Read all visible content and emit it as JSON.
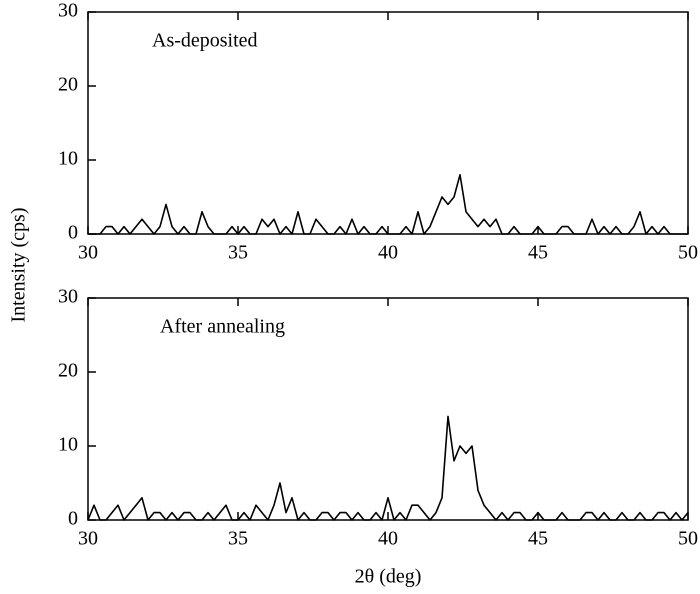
{
  "chart_data": [
    {
      "type": "line",
      "annotation": "As-deposited",
      "ylabel": "Intensity (cps)",
      "color": "#000000",
      "x": [
        30,
        30.2,
        30.4,
        30.6,
        30.8,
        31,
        31.2,
        31.4,
        31.6,
        31.8,
        32,
        32.2,
        32.4,
        32.6,
        32.8,
        33,
        33.2,
        33.4,
        33.6,
        33.8,
        34,
        34.2,
        34.4,
        34.6,
        34.8,
        35,
        35.2,
        35.4,
        35.6,
        35.8,
        36,
        36.2,
        36.4,
        36.6,
        36.8,
        37,
        37.2,
        37.4,
        37.6,
        37.8,
        38,
        38.2,
        38.4,
        38.6,
        38.8,
        39,
        39.2,
        39.4,
        39.6,
        39.8,
        40,
        40.2,
        40.4,
        40.6,
        40.8,
        41,
        41.2,
        41.4,
        41.6,
        41.8,
        42,
        42.2,
        42.4,
        42.6,
        42.8,
        43,
        43.2,
        43.4,
        43.6,
        43.8,
        44,
        44.2,
        44.4,
        44.6,
        44.8,
        45,
        45.2,
        45.4,
        45.6,
        45.8,
        46,
        46.2,
        46.4,
        46.6,
        46.8,
        47,
        47.2,
        47.4,
        47.6,
        47.8,
        48,
        48.2,
        48.4,
        48.6,
        48.8,
        49,
        49.2,
        49.4,
        49.6,
        49.8,
        50
      ],
      "values": [
        0,
        0,
        0,
        1,
        1,
        0,
        1,
        0,
        1,
        2,
        1,
        0,
        1,
        4,
        1,
        0,
        1,
        0,
        0,
        3,
        1,
        0,
        0,
        0,
        1,
        0,
        1,
        0,
        0,
        2,
        1,
        2,
        0,
        1,
        0,
        3,
        0,
        0,
        2,
        1,
        0,
        0,
        1,
        0,
        2,
        0,
        1,
        0,
        0,
        1,
        0,
        0,
        0,
        1,
        0,
        3,
        0,
        1,
        3,
        5,
        4,
        5,
        8,
        3,
        2,
        1,
        2,
        1,
        2,
        0,
        0,
        1,
        0,
        0,
        0,
        1,
        0,
        0,
        0,
        1,
        1,
        0,
        0,
        0,
        2,
        0,
        1,
        0,
        1,
        0,
        0,
        1,
        3,
        0,
        1,
        0,
        1,
        0,
        0,
        0,
        0
      ],
      "xlim": [
        30,
        50
      ],
      "xticks": [
        30,
        35,
        40,
        45,
        50
      ],
      "ylim": [
        0,
        30
      ],
      "yticks": [
        0,
        10,
        20,
        30
      ]
    },
    {
      "type": "line",
      "annotation": "After annealing",
      "xlabel": "2θ (deg)",
      "color": "#000000",
      "x": [
        30,
        30.2,
        30.4,
        30.6,
        30.8,
        31,
        31.2,
        31.4,
        31.6,
        31.8,
        32,
        32.2,
        32.4,
        32.6,
        32.8,
        33,
        33.2,
        33.4,
        33.6,
        33.8,
        34,
        34.2,
        34.4,
        34.6,
        34.8,
        35,
        35.2,
        35.4,
        35.6,
        35.8,
        36,
        36.2,
        36.4,
        36.6,
        36.8,
        37,
        37.2,
        37.4,
        37.6,
        37.8,
        38,
        38.2,
        38.4,
        38.6,
        38.8,
        39,
        39.2,
        39.4,
        39.6,
        39.8,
        40,
        40.2,
        40.4,
        40.6,
        40.8,
        41,
        41.2,
        41.4,
        41.6,
        41.8,
        42,
        42.2,
        42.4,
        42.6,
        42.8,
        43,
        43.2,
        43.4,
        43.6,
        43.8,
        44,
        44.2,
        44.4,
        44.6,
        44.8,
        45,
        45.2,
        45.4,
        45.6,
        45.8,
        46,
        46.2,
        46.4,
        46.6,
        46.8,
        47,
        47.2,
        47.4,
        47.6,
        47.8,
        48,
        48.2,
        48.4,
        48.6,
        48.8,
        49,
        49.2,
        49.4,
        49.6,
        49.8,
        50
      ],
      "values": [
        0,
        2,
        0,
        0,
        1,
        2,
        0,
        1,
        2,
        3,
        0,
        1,
        1,
        0,
        1,
        0,
        1,
        1,
        0,
        0,
        1,
        0,
        1,
        2,
        0,
        0,
        1,
        0,
        2,
        1,
        0,
        2,
        5,
        1,
        3,
        0,
        1,
        0,
        0,
        1,
        1,
        0,
        1,
        1,
        0,
        1,
        0,
        0,
        1,
        0,
        3,
        0,
        1,
        0,
        2,
        2,
        1,
        0,
        1,
        3,
        14,
        8,
        10,
        9,
        10,
        4,
        2,
        1,
        0,
        1,
        0,
        1,
        1,
        0,
        0,
        1,
        0,
        0,
        0,
        1,
        0,
        0,
        0,
        1,
        1,
        0,
        1,
        0,
        0,
        1,
        0,
        0,
        1,
        0,
        0,
        1,
        1,
        0,
        1,
        0,
        1
      ],
      "xlim": [
        30,
        50
      ],
      "xticks": [
        30,
        35,
        40,
        45,
        50
      ],
      "ylim": [
        0,
        30
      ],
      "yticks": [
        0,
        10,
        20,
        30
      ]
    }
  ]
}
